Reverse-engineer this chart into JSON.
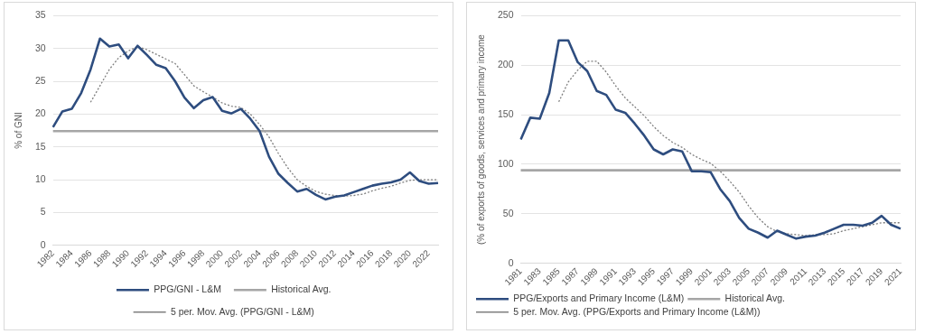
{
  "chart_data": [
    {
      "type": "line",
      "ylabel": "% of GNI",
      "categories": [
        "1982",
        null,
        "1984",
        null,
        "1986",
        null,
        "1988",
        null,
        "1990",
        null,
        "1992",
        null,
        "1994",
        null,
        "1996",
        null,
        "1998",
        null,
        "2000",
        null,
        "2002",
        null,
        "2004",
        null,
        "2006",
        null,
        "2008",
        null,
        "2010",
        null,
        "2012",
        null,
        "2014",
        null,
        "2016",
        null,
        "2018",
        null,
        "2020",
        null,
        "2022",
        null
      ],
      "ylim": [
        0,
        35
      ],
      "yticks": [
        0,
        5,
        10,
        15,
        20,
        25,
        30,
        35
      ],
      "grid": "y",
      "legend": "bottom",
      "marker": "none",
      "series": [
        {
          "name": "PPG/GNI - L&M",
          "color": "#2e4d7f",
          "line_style": "solid",
          "values": [
            18.0,
            20.4,
            20.8,
            23.2,
            26.8,
            31.5,
            30.3,
            30.6,
            28.5,
            30.4,
            29.0,
            27.5,
            27.0,
            25.0,
            22.5,
            20.9,
            22.1,
            22.6,
            20.5,
            20.1,
            20.8,
            19.3,
            17.4,
            13.5,
            10.9,
            9.5,
            8.2,
            8.6,
            7.7,
            7.0,
            7.4,
            7.6,
            8.1,
            8.6,
            9.1,
            9.4,
            9.6,
            10.0,
            11.1,
            9.8,
            9.4,
            9.5
          ]
        },
        {
          "name": "Historical Avg.",
          "color": "#a6a6a6",
          "line_style": "solid",
          "values": [
            17.4,
            17.4,
            17.4,
            17.4,
            17.4,
            17.4,
            17.4,
            17.4,
            17.4,
            17.4,
            17.4,
            17.4,
            17.4,
            17.4,
            17.4,
            17.4,
            17.4,
            17.4,
            17.4,
            17.4,
            17.4,
            17.4,
            17.4,
            17.4,
            17.4,
            17.4,
            17.4,
            17.4,
            17.4,
            17.4,
            17.4,
            17.4,
            17.4,
            17.4,
            17.4,
            17.4,
            17.4,
            17.4,
            17.4,
            17.4,
            17.4,
            17.4
          ]
        },
        {
          "name": "5 per. Mov. Avg. (PPG/GNI - L&M)",
          "color": "#7f7f7f",
          "line_style": "dotted",
          "values": [
            null,
            null,
            null,
            null,
            21.8,
            24.3,
            26.8,
            28.6,
            29.6,
            30.3,
            29.8,
            29.1,
            28.4,
            27.7,
            26.0,
            24.3,
            23.4,
            22.6,
            21.7,
            21.2,
            21.0,
            20.0,
            18.4,
            16.5,
            14.0,
            11.8,
            10.0,
            9.0,
            8.2,
            7.8,
            7.6,
            7.5,
            7.6,
            7.8,
            8.3,
            8.7,
            9.0,
            9.5,
            9.9,
            10.0,
            10.0,
            10.0
          ]
        }
      ]
    },
    {
      "type": "line",
      "ylabel": "(% of exports of goods, services and primary income",
      "categories": [
        "1981",
        null,
        "1983",
        null,
        "1985",
        null,
        "1987",
        null,
        "1989",
        null,
        "1991",
        null,
        "1993",
        null,
        "1995",
        null,
        "1997",
        null,
        "1999",
        null,
        "2001",
        null,
        "2003",
        null,
        "2005",
        null,
        "2007",
        null,
        "2009",
        null,
        "2011",
        null,
        "2013",
        null,
        "2015",
        null,
        "2017",
        null,
        "2019",
        null,
        "2021"
      ],
      "ylim": [
        0,
        250
      ],
      "yticks": [
        0,
        50,
        100,
        150,
        200,
        250
      ],
      "grid": "y",
      "legend": "bottom",
      "marker": "none",
      "series": [
        {
          "name": "PPG/Exports and Primary Income (L&M)",
          "color": "#2e4d7f",
          "line_style": "solid",
          "values": [
            125,
            147,
            146,
            172,
            225,
            225,
            203,
            194,
            174,
            170,
            155,
            152,
            141,
            129,
            115,
            110,
            115,
            113,
            93,
            93,
            92,
            75,
            63,
            46,
            35,
            31,
            26,
            33,
            29,
            25,
            27,
            28,
            31,
            35,
            39,
            39,
            38,
            41,
            48,
            39,
            35
          ]
        },
        {
          "name": "Historical Avg.",
          "color": "#a6a6a6",
          "line_style": "solid",
          "values": [
            94,
            94,
            94,
            94,
            94,
            94,
            94,
            94,
            94,
            94,
            94,
            94,
            94,
            94,
            94,
            94,
            94,
            94,
            94,
            94,
            94,
            94,
            94,
            94,
            94,
            94,
            94,
            94,
            94,
            94,
            94,
            94,
            94,
            94,
            94,
            94,
            94,
            94,
            94,
            94,
            94
          ]
        },
        {
          "name": "5 per. Mov. Avg. (PPG/Exports and Primary Income (L&M))",
          "color": "#7f7f7f",
          "line_style": "dotted",
          "values": [
            null,
            null,
            null,
            null,
            163,
            183,
            195,
            204,
            204,
            193,
            179,
            167,
            158,
            149,
            138,
            129,
            122,
            117,
            110,
            105,
            101,
            93,
            83,
            72,
            58,
            46,
            37,
            32,
            30,
            29,
            28,
            29,
            29,
            30,
            33,
            35,
            37,
            39,
            41,
            41,
            41
          ]
        }
      ]
    }
  ]
}
